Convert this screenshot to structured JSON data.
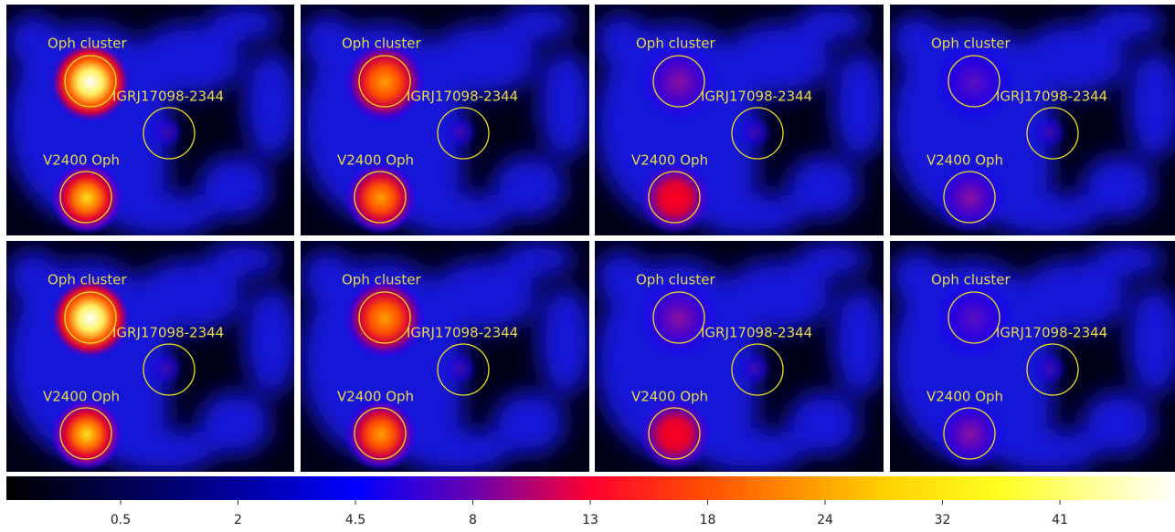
{
  "panels": [
    {
      "labels": [
        "Oph cluster",
        "IGRJ17098-2344",
        "V2400 Oph"
      ]
    },
    {
      "labels": [
        "Oph cluster",
        "IGRJ17098-2344",
        "V2400 Oph"
      ]
    },
    {
      "labels": [
        "Oph cluster",
        "IGRJ17098-2344",
        "V2400 Oph"
      ]
    },
    {
      "labels": [
        "Oph cluster",
        "IGRJ17098-2344",
        "V2400 Oph"
      ]
    },
    {
      "labels": [
        "Oph cluster",
        "IGRJ17098-2344",
        "V2400 Oph"
      ]
    },
    {
      "labels": [
        "Oph cluster",
        "IGRJ17098-2344",
        "V2400 Oph"
      ]
    },
    {
      "labels": [
        "Oph cluster",
        "IGRJ17098-2344",
        "V2400 Oph"
      ]
    },
    {
      "labels": [
        "Oph cluster",
        "IGRJ17098-2344",
        "V2400 Oph"
      ]
    }
  ],
  "colorbar": {
    "ticks": [
      "0.5",
      "2",
      "4.5",
      "8",
      "13",
      "18",
      "24",
      "32",
      "41"
    ]
  }
}
